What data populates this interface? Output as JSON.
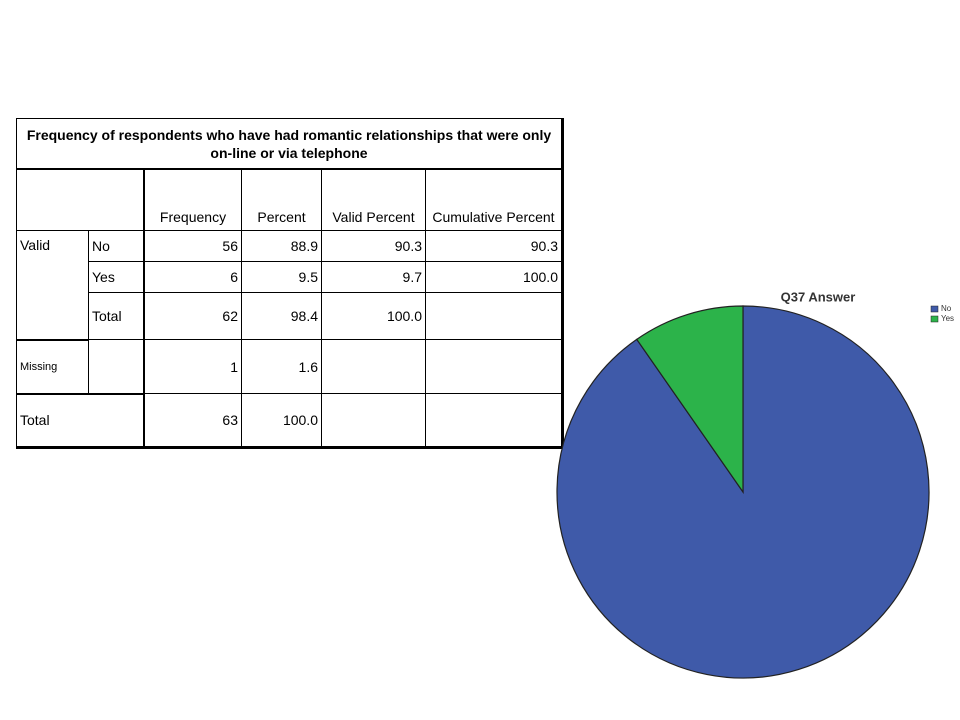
{
  "table": {
    "title": "Frequency of respondents who have had romantic relationships that were only on-line or via telephone",
    "columns": [
      "Frequency",
      "Percent",
      "Valid Percent",
      "Cumulative Percent"
    ],
    "rows": [
      {
        "group": "Valid",
        "label": "No",
        "cells": [
          "56",
          "88.9",
          "90.3",
          "90.3"
        ]
      },
      {
        "label": "Yes",
        "cells": [
          "6",
          "9.5",
          "9.7",
          "100.0"
        ]
      },
      {
        "label": "Total",
        "cells": [
          "62",
          "98.4",
          "100.0"
        ]
      },
      {
        "group": "Missing",
        "cells": [
          "1",
          "1.6"
        ]
      },
      {
        "group": "Total",
        "cells": [
          "63",
          "100.0"
        ]
      }
    ]
  },
  "chart_data": {
    "type": "pie",
    "title": "Q37 Answer",
    "categories": [
      "No",
      "Yes"
    ],
    "values": [
      56,
      6
    ],
    "colors": [
      "#3f5aa9",
      "#2cb34a"
    ]
  }
}
